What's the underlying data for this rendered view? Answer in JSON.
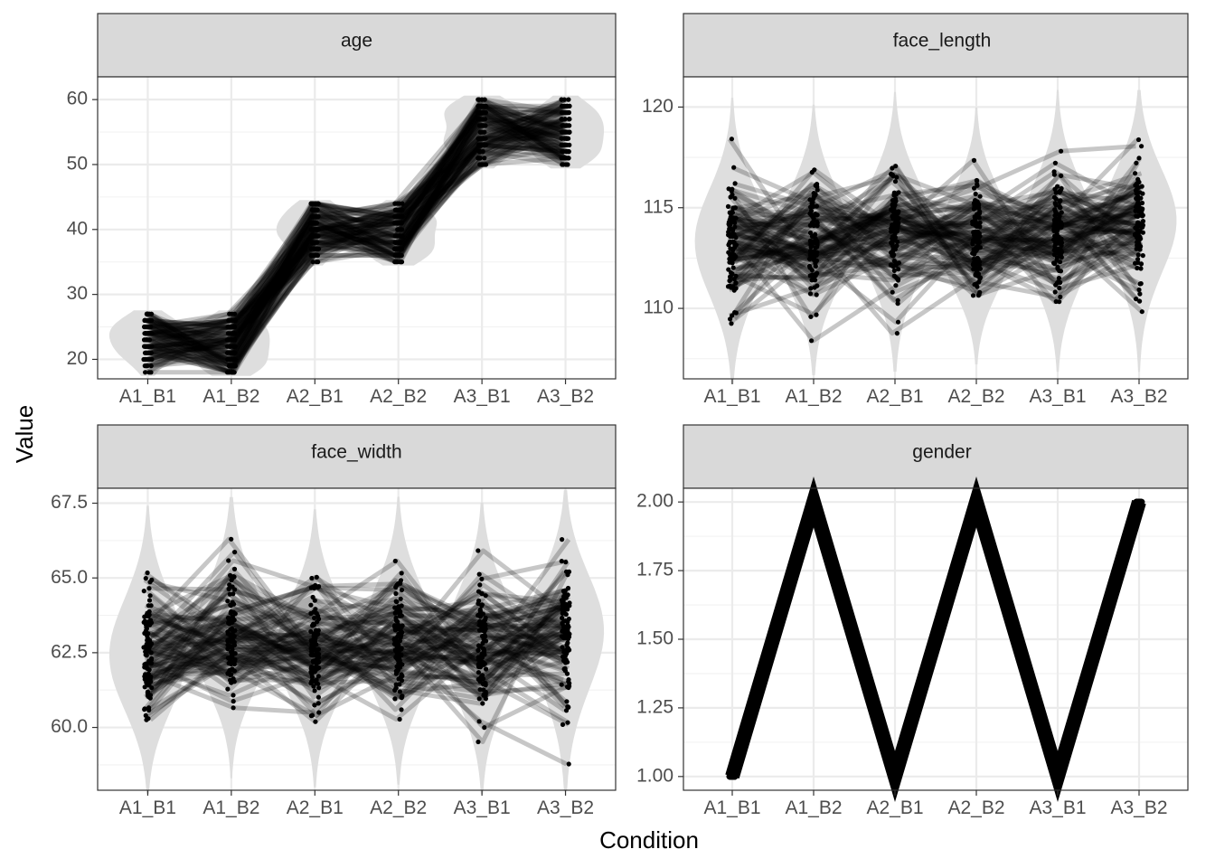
{
  "chart_data": {
    "type": "line",
    "xlabel": "Condition",
    "ylabel": "Value",
    "categories": [
      "A1_B1",
      "A1_B2",
      "A2_B1",
      "A2_B2",
      "A3_B1",
      "A3_B2"
    ],
    "grid": true,
    "facets": [
      {
        "name": "age",
        "ylim": [
          17,
          63.5
        ],
        "yticks": [
          20,
          30,
          40,
          50,
          60
        ],
        "ytick_labels": [
          "20",
          "30",
          "40",
          "50",
          "60"
        ],
        "ranges": [
          [
            18,
            27
          ],
          [
            18,
            27
          ],
          [
            35,
            44
          ],
          [
            35,
            44
          ],
          [
            50,
            60
          ],
          [
            50,
            60
          ]
        ],
        "n_subjects": 100
      },
      {
        "name": "face_length",
        "ylim": [
          106.5,
          121.5
        ],
        "yticks": [
          110,
          115,
          120
        ],
        "ytick_labels": [
          "110",
          "115",
          "120"
        ],
        "ranges": [
          [
            107.0,
            119.7
          ],
          [
            107.4,
            119.4
          ],
          [
            107.6,
            120.0
          ],
          [
            107.9,
            119.3
          ],
          [
            107.6,
            120.1
          ],
          [
            107.6,
            120.1
          ]
        ],
        "n_subjects": 100
      },
      {
        "name": "face_width",
        "ylim": [
          57.9,
          68.0
        ],
        "yticks": [
          60.0,
          62.5,
          65.0,
          67.5
        ],
        "ytick_labels": [
          "60.0",
          "62.5",
          "65.0",
          "67.5"
        ],
        "ranges": [
          [
            58.3,
            66.9
          ],
          [
            58.8,
            67.2
          ],
          [
            58.5,
            66.8
          ],
          [
            58.6,
            67.2
          ],
          [
            58.3,
            67.0
          ],
          [
            58.4,
            67.4
          ]
        ],
        "n_subjects": 100
      },
      {
        "name": "gender",
        "ylim": [
          0.95,
          2.05
        ],
        "yticks": [
          1.0,
          1.25,
          1.5,
          1.75,
          2.0
        ],
        "ytick_labels": [
          "1.00",
          "1.25",
          "1.50",
          "1.75",
          "2.00"
        ],
        "values": [
          1,
          2,
          1,
          2,
          1,
          2
        ],
        "n_subjects": 100
      }
    ]
  }
}
